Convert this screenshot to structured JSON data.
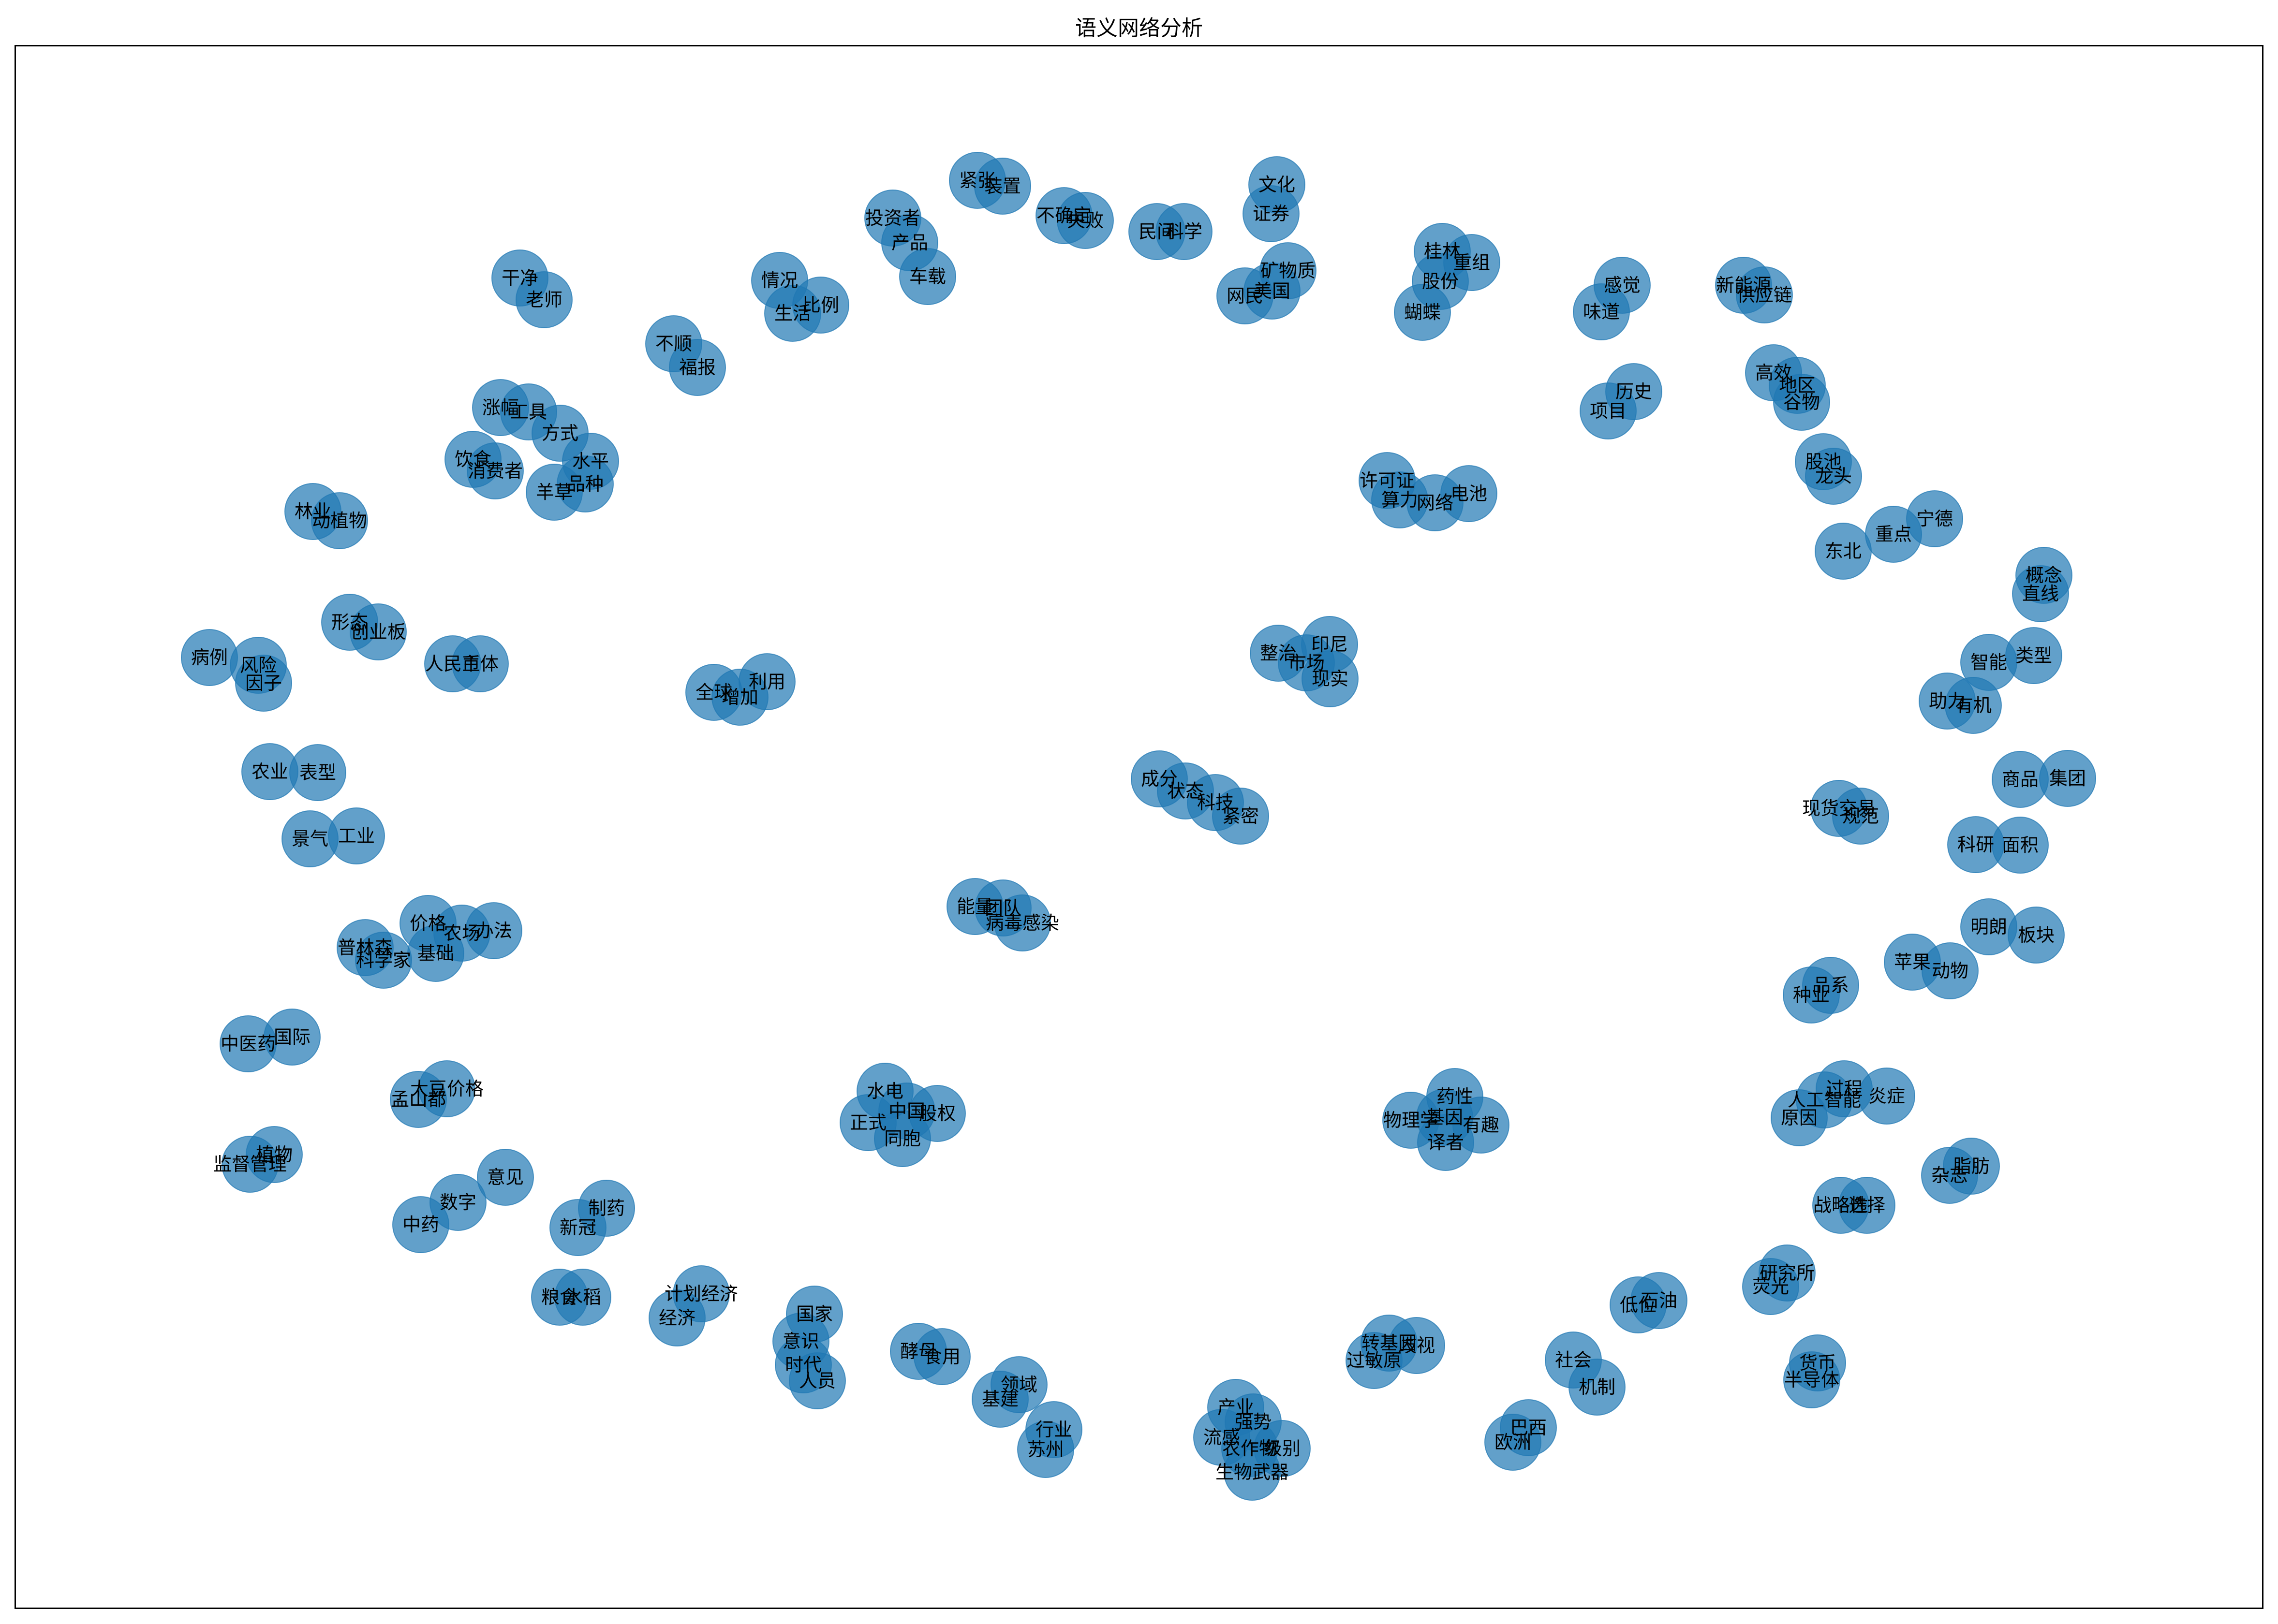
{
  "title": "语义网络分析",
  "chart_data": {
    "type": "network",
    "title": "语义网络分析",
    "node_color": "#1f77b4",
    "edges": [],
    "nodes": [
      "紧张",
      "装置",
      "不确定",
      "失败",
      "民间",
      "科学",
      "文化",
      "证券",
      "投资者",
      "产品",
      "车载",
      "情况",
      "生活",
      "比例",
      "桂林",
      "重组",
      "股份",
      "蝴蝶",
      "矿物质",
      "美国",
      "网民",
      "感觉",
      "味道",
      "新能源",
      "供应链",
      "干净",
      "老师",
      "不顺",
      "福报",
      "历史",
      "项目",
      "高效",
      "地区",
      "谷物",
      "涨幅",
      "工具",
      "方式",
      "水平",
      "品种",
      "羊草",
      "饮食",
      "消费者",
      "许可证",
      "算力",
      "网络",
      "电池",
      "股池",
      "龙头",
      "宁德",
      "重点",
      "东北",
      "林业",
      "动植物",
      "概念",
      "直线",
      "形态",
      "创业板",
      "整治",
      "印尼",
      "市场",
      "现实",
      "智能",
      "类型",
      "病例",
      "风险",
      "因子",
      "人民币",
      "主体",
      "全球",
      "增加",
      "利用",
      "助力",
      "有机",
      "成分",
      "状态",
      "科技",
      "紧密",
      "商品",
      "集团",
      "现货交易",
      "规范",
      "农业",
      "表型",
      "景气",
      "工业",
      "科研",
      "面积",
      "能量",
      "团队",
      "病毒感染",
      "明朗",
      "板块",
      "价格",
      "农场",
      "办法",
      "普林森",
      "科学家",
      "基础",
      "苹果",
      "动物",
      "品系",
      "种业",
      "中医药",
      "国际",
      "大豆价格",
      "孟山都",
      "水电",
      "中国",
      "股权",
      "正式",
      "同胞",
      "药性",
      "物理学",
      "基因",
      "有趣",
      "译者",
      "过程",
      "人工智能",
      "炎症",
      "原因",
      "植物",
      "监督管理",
      "意见",
      "数字",
      "中药",
      "制药",
      "新冠",
      "脂肪",
      "杂志",
      "战略性",
      "选择",
      "计划经济",
      "经济",
      "粮食",
      "水稻",
      "研究所",
      "荧光",
      "国家",
      "意识",
      "时代",
      "人员",
      "低位",
      "石油",
      "酵母",
      "食用",
      "领域",
      "基建",
      "转基因",
      "过敏原",
      "歧视",
      "社会",
      "机制",
      "货币",
      "半导体",
      "产业",
      "强势",
      "流感",
      "农作物",
      "级别",
      "生物武器",
      "巴西",
      "欧洲",
      "行业",
      "苏州"
    ]
  }
}
